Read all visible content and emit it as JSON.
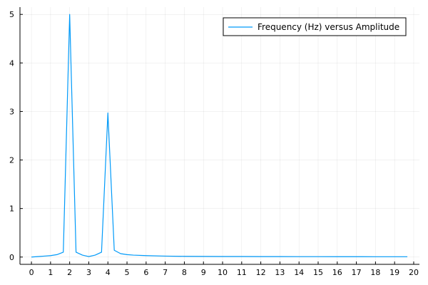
{
  "chart_data": {
    "type": "line",
    "title": "",
    "xlabel": "",
    "ylabel": "",
    "xlim": [
      -0.6,
      20.3
    ],
    "ylim": [
      -0.15,
      5.15
    ],
    "xticks": [
      0,
      1,
      2,
      3,
      4,
      5,
      6,
      7,
      8,
      9,
      10,
      11,
      12,
      13,
      14,
      15,
      16,
      17,
      18,
      19,
      20
    ],
    "yticks": [
      0,
      1,
      2,
      3,
      4,
      5
    ],
    "grid": true,
    "legend_position": "top-right",
    "series": [
      {
        "name": "Frequency (Hz) versus Amplitude",
        "color": "#009af9",
        "x": [
          0,
          0.333,
          0.667,
          1.0,
          1.333,
          1.667,
          2.0,
          2.333,
          2.667,
          3.0,
          3.333,
          3.667,
          4.0,
          4.333,
          4.667,
          5.0,
          5.333,
          6.0,
          7.0,
          8.0,
          9.0,
          10.0,
          11.0,
          12.0,
          13.0,
          14.0,
          15.0,
          16.0,
          17.0,
          18.0,
          19.0,
          19.667
        ],
        "y": [
          0.0,
          0.01,
          0.02,
          0.03,
          0.05,
          0.1,
          5.0,
          0.1,
          0.04,
          0.01,
          0.04,
          0.1,
          2.97,
          0.14,
          0.07,
          0.05,
          0.04,
          0.03,
          0.02,
          0.015,
          0.013,
          0.012,
          0.011,
          0.01,
          0.01,
          0.009,
          0.009,
          0.008,
          0.008,
          0.007,
          0.007,
          0.007
        ]
      }
    ]
  }
}
